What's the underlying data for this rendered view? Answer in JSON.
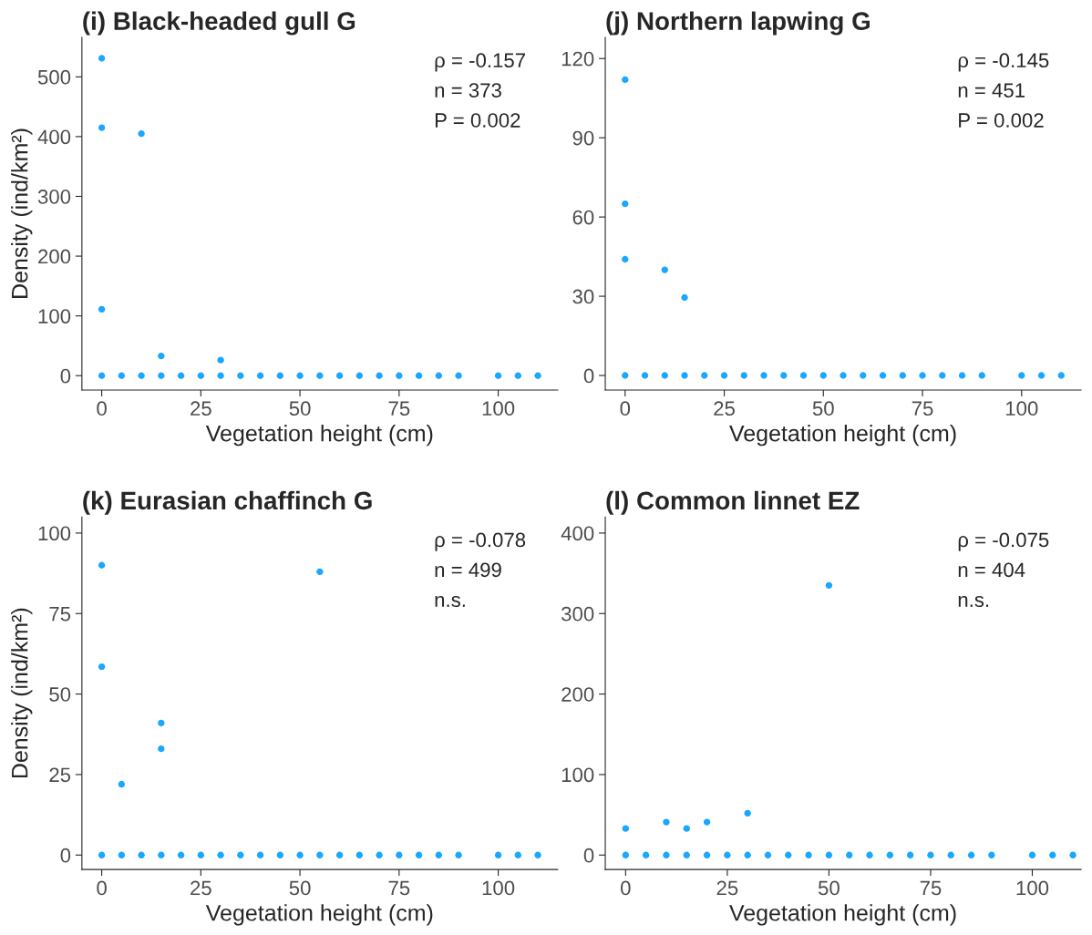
{
  "chart_data": [
    {
      "type": "scatter",
      "title": "(i) Black-headed gull G",
      "xlabel": "Vegetation height (cm)",
      "ylabel": "Density (ind/km²)",
      "annotations": [
        "ρ = -0.157",
        "n = 373",
        "P = 0.002"
      ],
      "xlim": [
        -5,
        115
      ],
      "ylim": [
        -24,
        566
      ],
      "xticks": [
        0,
        25,
        50,
        75,
        100
      ],
      "yticks": [
        0,
        100,
        200,
        300,
        400,
        500
      ],
      "grid": false,
      "marker": "circle",
      "series": [
        {
          "color": "#1aa7ff",
          "x": [
            0,
            0,
            10,
            0,
            15,
            30,
            0,
            5,
            10,
            15,
            20,
            25,
            30,
            35,
            40,
            45,
            50,
            55,
            60,
            65,
            70,
            75,
            80,
            85,
            90,
            100,
            105,
            110
          ],
          "values": [
            531,
            415,
            405,
            111,
            33,
            26,
            0,
            0,
            0,
            0,
            0,
            0,
            0,
            0,
            0,
            0,
            0,
            0,
            0,
            0,
            0,
            0,
            0,
            0,
            0,
            0,
            0,
            0
          ]
        }
      ]
    },
    {
      "type": "scatter",
      "title": "(j) Northern lapwing G",
      "xlabel": "Vegetation height (cm)",
      "annotations": [
        "ρ = -0.145",
        "n = 451",
        "P = 0.002"
      ],
      "xlim": [
        -5,
        115
      ],
      "ylim": [
        -5.5,
        128
      ],
      "xticks": [
        0,
        25,
        50,
        75,
        100
      ],
      "yticks": [
        0,
        30,
        60,
        90,
        120
      ],
      "grid": false,
      "marker": "circle",
      "series": [
        {
          "color": "#1aa7ff",
          "x": [
            0,
            0,
            0,
            10,
            15,
            0,
            5,
            10,
            15,
            20,
            25,
            30,
            35,
            40,
            45,
            50,
            55,
            60,
            65,
            70,
            75,
            80,
            85,
            90,
            100,
            105,
            110
          ],
          "values": [
            112,
            65,
            44,
            40,
            29.5,
            0,
            0,
            0,
            0,
            0,
            0,
            0,
            0,
            0,
            0,
            0,
            0,
            0,
            0,
            0,
            0,
            0,
            0,
            0,
            0,
            0,
            0
          ]
        }
      ]
    },
    {
      "type": "scatter",
      "title": "(k) Eurasian chaffinch G",
      "xlabel": "Vegetation height (cm)",
      "ylabel": "Density (ind/km²)",
      "annotations": [
        "ρ = -0.078",
        "n = 499",
        "n.s."
      ],
      "xlim": [
        -5,
        115
      ],
      "ylim": [
        -4.5,
        105
      ],
      "xticks": [
        0,
        25,
        50,
        75,
        100
      ],
      "yticks": [
        0,
        25,
        50,
        75,
        100
      ],
      "grid": false,
      "marker": "circle",
      "series": [
        {
          "color": "#1aa7ff",
          "x": [
            0,
            0,
            55,
            15,
            15,
            5,
            0,
            5,
            10,
            15,
            20,
            25,
            30,
            35,
            40,
            45,
            50,
            55,
            60,
            65,
            70,
            75,
            80,
            85,
            90,
            100,
            105,
            110
          ],
          "values": [
            90,
            58.5,
            88,
            41,
            33,
            22,
            0,
            0,
            0,
            0,
            0,
            0,
            0,
            0,
            0,
            0,
            0,
            0,
            0,
            0,
            0,
            0,
            0,
            0,
            0,
            0,
            0,
            0
          ]
        }
      ]
    },
    {
      "type": "scatter",
      "title": "(l) Common linnet EZ",
      "xlabel": "Vegetation height (cm)",
      "annotations": [
        "ρ = -0.075",
        "n = 404",
        "n.s."
      ],
      "xlim": [
        -5,
        112
      ],
      "ylim": [
        -18,
        420
      ],
      "xticks": [
        0,
        25,
        50,
        75,
        100
      ],
      "yticks": [
        0,
        100,
        200,
        300,
        400
      ],
      "grid": false,
      "marker": "circle",
      "series": [
        {
          "color": "#1aa7ff",
          "x": [
            50,
            30,
            10,
            20,
            0,
            15,
            0,
            5,
            10,
            15,
            20,
            25,
            30,
            35,
            40,
            45,
            50,
            55,
            60,
            65,
            70,
            75,
            80,
            85,
            90,
            100,
            105,
            110
          ],
          "values": [
            335,
            52,
            41,
            41,
            33,
            33,
            0,
            0,
            0,
            0,
            0,
            0,
            0,
            0,
            0,
            0,
            0,
            0,
            0,
            0,
            0,
            0,
            0,
            0,
            0,
            0,
            0,
            0
          ]
        }
      ]
    }
  ]
}
